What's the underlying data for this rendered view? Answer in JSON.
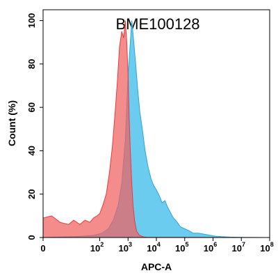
{
  "chart_data": {
    "type": "area",
    "title": "BME100128",
    "xlabel": "APC-A",
    "ylabel": "Count  (%)",
    "x_scale": "log",
    "xlim": [
      1,
      100000000
    ],
    "ylim": [
      0,
      105
    ],
    "y_ticks": [
      {
        "value": 0,
        "label": "0"
      },
      {
        "value": 20,
        "label": "20"
      },
      {
        "value": 40,
        "label": "40"
      },
      {
        "value": 60,
        "label": "60"
      },
      {
        "value": 80,
        "label": "80"
      },
      {
        "value": 100,
        "label": "100"
      }
    ],
    "x_ticks": [
      {
        "value": 1,
        "base": "0",
        "exp": ""
      },
      {
        "value": 100,
        "base": "10",
        "exp": "2"
      },
      {
        "value": 1000,
        "base": "10",
        "exp": "3"
      },
      {
        "value": 10000,
        "base": "10",
        "exp": "4"
      },
      {
        "value": 100000,
        "base": "10",
        "exp": "5"
      },
      {
        "value": 1000000,
        "base": "10",
        "exp": "6"
      },
      {
        "value": 10000000,
        "base": "10",
        "exp": "7"
      },
      {
        "value": 100000000,
        "base": "10",
        "exp": "8"
      }
    ],
    "series": [
      {
        "color": "#29a8d8",
        "fill": "#5cc6ee",
        "points": [
          [
            1,
            0
          ],
          [
            20,
            0.5
          ],
          [
            60,
            1
          ],
          [
            120,
            2
          ],
          [
            200,
            4
          ],
          [
            300,
            8
          ],
          [
            450,
            15
          ],
          [
            600,
            25
          ],
          [
            800,
            45
          ],
          [
            1000,
            75
          ],
          [
            1200,
            90
          ],
          [
            1350,
            100
          ],
          [
            1500,
            94
          ],
          [
            1800,
            82
          ],
          [
            2200,
            68
          ],
          [
            2600,
            58
          ],
          [
            3200,
            50
          ],
          [
            4000,
            40
          ],
          [
            5000,
            33
          ],
          [
            6500,
            27
          ],
          [
            8000,
            24
          ],
          [
            10000,
            22
          ],
          [
            13000,
            19
          ],
          [
            16000,
            16
          ],
          [
            20000,
            17
          ],
          [
            25000,
            14
          ],
          [
            30000,
            12
          ],
          [
            40000,
            9
          ],
          [
            55000,
            7
          ],
          [
            70000,
            5
          ],
          [
            100000,
            4
          ],
          [
            150000,
            3
          ],
          [
            200000,
            2
          ],
          [
            300000,
            2
          ],
          [
            500000,
            1.5
          ],
          [
            800000,
            1
          ],
          [
            1200000,
            0.6
          ],
          [
            2000000,
            0.4
          ],
          [
            4000000,
            0.2
          ],
          [
            10000000,
            0.1
          ],
          [
            100000000,
            0
          ]
        ]
      },
      {
        "color": "#e83a3a",
        "fill": "#f06060",
        "points": [
          [
            1,
            9
          ],
          [
            2,
            10
          ],
          [
            4,
            7
          ],
          [
            8,
            6
          ],
          [
            12,
            8
          ],
          [
            20,
            6
          ],
          [
            30,
            8
          ],
          [
            45,
            7
          ],
          [
            60,
            9
          ],
          [
            80,
            10
          ],
          [
            100,
            11
          ],
          [
            130,
            15
          ],
          [
            170,
            20
          ],
          [
            220,
            30
          ],
          [
            280,
            42
          ],
          [
            350,
            58
          ],
          [
            420,
            72
          ],
          [
            500,
            88
          ],
          [
            600,
            95
          ],
          [
            700,
            92
          ],
          [
            800,
            100
          ],
          [
            900,
            90
          ],
          [
            1000,
            75
          ],
          [
            1100,
            55
          ],
          [
            1200,
            40
          ],
          [
            1350,
            25
          ],
          [
            1500,
            15
          ],
          [
            1700,
            8
          ],
          [
            2000,
            3
          ],
          [
            2500,
            1
          ],
          [
            3500,
            0.3
          ],
          [
            5000,
            0.1
          ],
          [
            100000000,
            0
          ]
        ]
      }
    ]
  }
}
